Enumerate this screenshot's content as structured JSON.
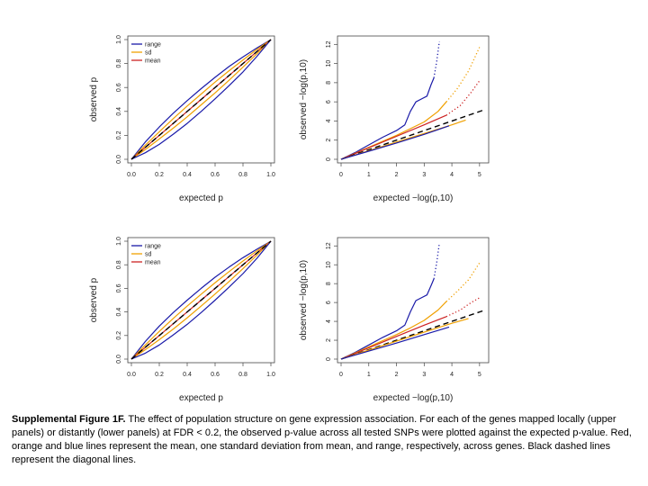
{
  "caption": {
    "label": "Supplemental Figure 1F.",
    "text": " The effect of population structure on gene expression association. For each of the genes mapped locally (upper panels) or distantly (lower panels) at FDR < 0.2, the observed p-value across all tested SNPs were plotted against the expected p-value. Red, orange and blue lines represent the mean, one standard deviation from mean, and range, respectively, across genes. Black dashed lines represent the diagonal lines."
  },
  "colors": {
    "range": "#1a1aa8",
    "sd": "#f0a000",
    "mean": "#cc2222",
    "diagonal": "#000000"
  },
  "chart_data": [
    {
      "id": "upper-left",
      "type": "line",
      "xlabel": "expected p",
      "ylabel": "observed p",
      "xlim": [
        0,
        1
      ],
      "ylim": [
        0,
        1
      ],
      "xticks": [
        "0.0",
        "0.2",
        "0.4",
        "0.6",
        "0.8",
        "1.0"
      ],
      "yticks": [
        "0.0",
        "0.2",
        "0.4",
        "0.6",
        "0.8",
        "1.0"
      ],
      "legend": [
        "range",
        "sd",
        "mean"
      ],
      "series": [
        {
          "name": "range upper",
          "color_key": "range",
          "style": "solid",
          "x": [
            0,
            0.1,
            0.2,
            0.3,
            0.4,
            0.5,
            0.6,
            0.7,
            0.8,
            0.9,
            1
          ],
          "y": [
            0,
            0.145,
            0.27,
            0.385,
            0.49,
            0.59,
            0.685,
            0.775,
            0.855,
            0.93,
            1
          ]
        },
        {
          "name": "sd upper",
          "color_key": "sd",
          "style": "solid",
          "x": [
            0,
            0.1,
            0.2,
            0.3,
            0.4,
            0.5,
            0.6,
            0.7,
            0.8,
            0.9,
            1
          ],
          "y": [
            0,
            0.118,
            0.23,
            0.34,
            0.445,
            0.545,
            0.645,
            0.74,
            0.83,
            0.918,
            1
          ]
        },
        {
          "name": "mean",
          "color_key": "mean",
          "style": "solid",
          "x": [
            0,
            0.1,
            0.2,
            0.3,
            0.4,
            0.5,
            0.6,
            0.7,
            0.8,
            0.9,
            1
          ],
          "y": [
            0,
            0.1,
            0.2,
            0.3,
            0.4,
            0.5,
            0.6,
            0.7,
            0.8,
            0.9,
            1
          ]
        },
        {
          "name": "sd lower",
          "color_key": "sd",
          "style": "solid",
          "x": [
            0,
            0.1,
            0.2,
            0.3,
            0.4,
            0.5,
            0.6,
            0.7,
            0.8,
            0.9,
            1
          ],
          "y": [
            0,
            0.082,
            0.17,
            0.26,
            0.355,
            0.455,
            0.555,
            0.66,
            0.77,
            0.882,
            1
          ]
        },
        {
          "name": "range lower",
          "color_key": "range",
          "style": "solid",
          "x": [
            0,
            0.1,
            0.2,
            0.3,
            0.4,
            0.5,
            0.6,
            0.7,
            0.8,
            0.9,
            1
          ],
          "y": [
            0,
            0.055,
            0.125,
            0.21,
            0.3,
            0.4,
            0.505,
            0.615,
            0.73,
            0.86,
            1
          ]
        },
        {
          "name": "diagonal",
          "color_key": "diagonal",
          "style": "dashed",
          "x": [
            0,
            1
          ],
          "y": [
            0,
            1
          ]
        }
      ]
    },
    {
      "id": "upper-right",
      "type": "line",
      "xlabel": "expected −log(p,10)",
      "ylabel": "observed −log(p,10)",
      "xlim": [
        0,
        5.2
      ],
      "ylim": [
        0,
        12.5
      ],
      "xticks": [
        "0",
        "1",
        "2",
        "3",
        "4",
        "5"
      ],
      "yticks": [
        "0",
        "2",
        "4",
        "6",
        "8",
        "10",
        "12"
      ],
      "series": [
        {
          "name": "range upper",
          "color_key": "range",
          "style": "solid",
          "x": [
            0,
            0.5,
            1,
            1.5,
            2,
            2.3,
            2.5,
            2.7,
            2.9,
            3.1,
            3.25,
            3.35
          ],
          "y": [
            0,
            0.7,
            1.5,
            2.3,
            3.0,
            3.6,
            5.0,
            6.0,
            6.3,
            6.6,
            7.8,
            8.5
          ]
        },
        {
          "name": "range tail",
          "color_key": "range",
          "style": "dotted",
          "x": [
            3.35,
            3.45,
            3.55
          ],
          "y": [
            8.5,
            10.2,
            12.3
          ]
        },
        {
          "name": "sd upper",
          "color_key": "sd",
          "style": "solid",
          "x": [
            0,
            1,
            2,
            2.5,
            3,
            3.5,
            3.8
          ],
          "y": [
            0,
            1.25,
            2.5,
            3.2,
            3.9,
            5.0,
            6.0
          ]
        },
        {
          "name": "sd tail",
          "color_key": "sd",
          "style": "dotted",
          "x": [
            3.8,
            4.2,
            4.6,
            5.0
          ],
          "y": [
            6.0,
            7.4,
            9.2,
            11.7
          ]
        },
        {
          "name": "mean upper",
          "color_key": "mean",
          "style": "solid",
          "x": [
            0,
            1,
            2,
            3,
            3.8
          ],
          "y": [
            0,
            1.2,
            2.4,
            3.6,
            4.6
          ]
        },
        {
          "name": "mean tail",
          "color_key": "mean",
          "style": "dotted",
          "x": [
            3.8,
            4.3,
            4.7,
            5.0
          ],
          "y": [
            4.6,
            5.6,
            7.0,
            8.2
          ]
        },
        {
          "name": "diagonal",
          "color_key": "diagonal",
          "style": "dashed",
          "x": [
            0,
            5.2
          ],
          "y": [
            0,
            5.2
          ]
        },
        {
          "name": "sd lower",
          "color_key": "sd",
          "style": "solid",
          "x": [
            0,
            1,
            2,
            3,
            4,
            4.5
          ],
          "y": [
            0,
            0.9,
            1.8,
            2.7,
            3.6,
            4.1
          ]
        },
        {
          "name": "range lower",
          "color_key": "range",
          "style": "solid",
          "x": [
            0,
            1,
            2,
            3,
            3.9
          ],
          "y": [
            0,
            0.85,
            1.7,
            2.6,
            3.5
          ]
        }
      ]
    },
    {
      "id": "lower-left",
      "type": "line",
      "xlabel": "expected p",
      "ylabel": "observed p",
      "xlim": [
        0,
        1
      ],
      "ylim": [
        0,
        1
      ],
      "xticks": [
        "0.0",
        "0.2",
        "0.4",
        "0.6",
        "0.8",
        "1.0"
      ],
      "yticks": [
        "0.0",
        "0.2",
        "0.4",
        "0.6",
        "0.8",
        "1.0"
      ],
      "legend": [
        "range",
        "sd",
        "mean"
      ],
      "series": [
        {
          "name": "range upper",
          "color_key": "range",
          "style": "solid",
          "x": [
            0,
            0.1,
            0.2,
            0.3,
            0.4,
            0.5,
            0.6,
            0.7,
            0.8,
            0.9,
            1
          ],
          "y": [
            0,
            0.15,
            0.28,
            0.395,
            0.5,
            0.6,
            0.695,
            0.78,
            0.86,
            0.932,
            1
          ]
        },
        {
          "name": "sd upper",
          "color_key": "sd",
          "style": "solid",
          "x": [
            0,
            0.1,
            0.2,
            0.3,
            0.4,
            0.5,
            0.6,
            0.7,
            0.8,
            0.9,
            1
          ],
          "y": [
            0,
            0.12,
            0.235,
            0.345,
            0.45,
            0.55,
            0.648,
            0.742,
            0.832,
            0.918,
            1
          ]
        },
        {
          "name": "mean",
          "color_key": "mean",
          "style": "solid",
          "x": [
            0,
            0.1,
            0.2,
            0.3,
            0.4,
            0.5,
            0.6,
            0.7,
            0.8,
            0.9,
            1
          ],
          "y": [
            0,
            0.1,
            0.2,
            0.3,
            0.4,
            0.5,
            0.6,
            0.7,
            0.8,
            0.9,
            1
          ]
        },
        {
          "name": "sd lower",
          "color_key": "sd",
          "style": "solid",
          "x": [
            0,
            0.1,
            0.2,
            0.3,
            0.4,
            0.5,
            0.6,
            0.7,
            0.8,
            0.9,
            1
          ],
          "y": [
            0,
            0.08,
            0.165,
            0.255,
            0.35,
            0.45,
            0.552,
            0.658,
            0.768,
            0.882,
            1
          ]
        },
        {
          "name": "range lower",
          "color_key": "range",
          "style": "solid",
          "x": [
            0,
            0.1,
            0.2,
            0.3,
            0.4,
            0.5,
            0.6,
            0.7,
            0.8,
            0.9,
            1
          ],
          "y": [
            0,
            0.05,
            0.12,
            0.205,
            0.295,
            0.395,
            0.5,
            0.61,
            0.725,
            0.855,
            1
          ]
        },
        {
          "name": "diagonal",
          "color_key": "diagonal",
          "style": "dashed",
          "x": [
            0,
            1
          ],
          "y": [
            0,
            1
          ]
        }
      ]
    },
    {
      "id": "lower-right",
      "type": "line",
      "xlabel": "expected −log(p,10)",
      "ylabel": "observed −log(p,10)",
      "xlim": [
        0,
        5.2
      ],
      "ylim": [
        0,
        12.5
      ],
      "xticks": [
        "0",
        "1",
        "2",
        "3",
        "4",
        "5"
      ],
      "yticks": [
        "0",
        "2",
        "4",
        "6",
        "8",
        "10",
        "12"
      ],
      "series": [
        {
          "name": "range upper",
          "color_key": "range",
          "style": "solid",
          "x": [
            0,
            0.5,
            1,
            1.5,
            2,
            2.3,
            2.5,
            2.7,
            2.9,
            3.1,
            3.25,
            3.35
          ],
          "y": [
            0,
            0.7,
            1.5,
            2.3,
            3.0,
            3.6,
            5.0,
            6.2,
            6.5,
            6.8,
            7.8,
            8.5
          ]
        },
        {
          "name": "range tail",
          "color_key": "range",
          "style": "dotted",
          "x": [
            3.35,
            3.45,
            3.55
          ],
          "y": [
            8.5,
            10.2,
            12.3
          ]
        },
        {
          "name": "sd upper",
          "color_key": "sd",
          "style": "solid",
          "x": [
            0,
            1,
            2,
            2.5,
            3,
            3.5,
            3.8
          ],
          "y": [
            0,
            1.3,
            2.6,
            3.3,
            4.1,
            5.2,
            6.1
          ]
        },
        {
          "name": "sd tail",
          "color_key": "sd",
          "style": "dotted",
          "x": [
            3.8,
            4.2,
            4.6,
            5.0
          ],
          "y": [
            6.1,
            7.2,
            8.4,
            10.2
          ]
        },
        {
          "name": "mean upper",
          "color_key": "mean",
          "style": "solid",
          "x": [
            0,
            1,
            2,
            3,
            3.8
          ],
          "y": [
            0,
            1.2,
            2.4,
            3.6,
            4.5
          ]
        },
        {
          "name": "mean tail",
          "color_key": "mean",
          "style": "dotted",
          "x": [
            3.8,
            4.3,
            4.7,
            5.0
          ],
          "y": [
            4.5,
            5.2,
            6.0,
            6.5
          ]
        },
        {
          "name": "diagonal",
          "color_key": "diagonal",
          "style": "dashed",
          "x": [
            0,
            5.2
          ],
          "y": [
            0,
            5.2
          ]
        },
        {
          "name": "sd lower",
          "color_key": "sd",
          "style": "solid",
          "x": [
            0,
            1,
            2,
            3,
            4,
            4.6
          ],
          "y": [
            0,
            0.95,
            1.9,
            2.85,
            3.8,
            4.3
          ]
        },
        {
          "name": "range lower",
          "color_key": "range",
          "style": "solid",
          "x": [
            0,
            1,
            2,
            3,
            3.9
          ],
          "y": [
            0,
            0.85,
            1.7,
            2.6,
            3.4
          ]
        }
      ]
    }
  ]
}
